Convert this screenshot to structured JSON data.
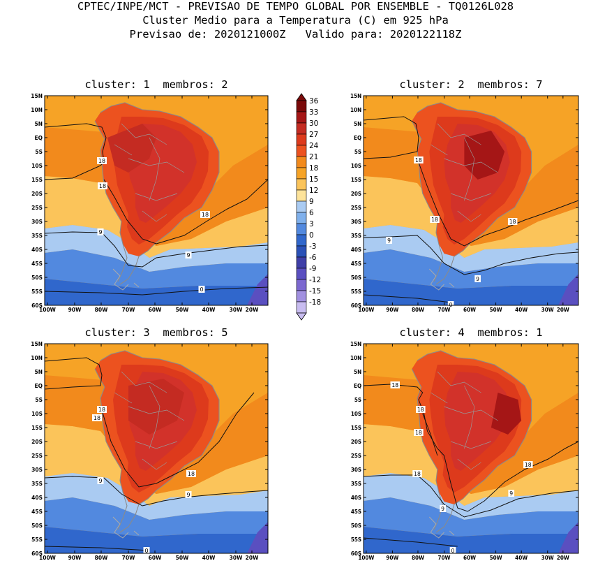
{
  "header": {
    "line1": "CPTEC/INPE/MCT - PREVISAO DE TEMPO GLOBAL POR ENSEMBLE - TQ0126L028",
    "line2": "Cluster Medio para a Temperatura (C) em 925 hPa",
    "line3": "Previsao de: 2020121000Z   Valido para: 2020122118Z"
  },
  "panels": [
    {
      "title": "cluster: 1  membros: 2"
    },
    {
      "title": "cluster: 2  membros: 7"
    },
    {
      "title": "cluster: 3  membros: 5"
    },
    {
      "title": "cluster: 4  membros: 1"
    }
  ],
  "lat_labels": [
    "15N",
    "10N",
    "5N",
    "EQ",
    "5S",
    "10S",
    "15S",
    "20S",
    "25S",
    "30S",
    "35S",
    "40S",
    "45S",
    "50S",
    "55S",
    "60S"
  ],
  "lon_labels": [
    "100W",
    "90W",
    "80W",
    "70W",
    "60W",
    "50W",
    "40W",
    "30W",
    "20W"
  ],
  "colorbar": {
    "levels": [
      "36",
      "33",
      "30",
      "27",
      "24",
      "21",
      "18",
      "15",
      "12",
      "9",
      "6",
      "3",
      "0",
      "-3",
      "-6",
      "-9",
      "-12",
      "-15",
      "-18"
    ],
    "colors": [
      "#7a0a0a",
      "#a51616",
      "#c42b22",
      "#dd3a1c",
      "#ec521f",
      "#f28a1c",
      "#f6a326",
      "#fbc45a",
      "#fde39a",
      "#aacbf2",
      "#7fb0ec",
      "#5289df",
      "#3067cc",
      "#2a51b8",
      "#3f3fa8",
      "#5a4fc0",
      "#7c68d0",
      "#a190e0",
      "#c8bcf0"
    ]
  },
  "contour_labels": [
    [
      "18",
      "18",
      "18",
      "9",
      "9",
      "0"
    ],
    [
      "18",
      "18",
      "18",
      "9",
      "9",
      "0"
    ],
    [
      "18",
      "18",
      "18",
      "9",
      "9",
      "0"
    ],
    [
      "18",
      "18",
      "18",
      "18",
      "18",
      "9",
      "9",
      "0"
    ]
  ]
}
